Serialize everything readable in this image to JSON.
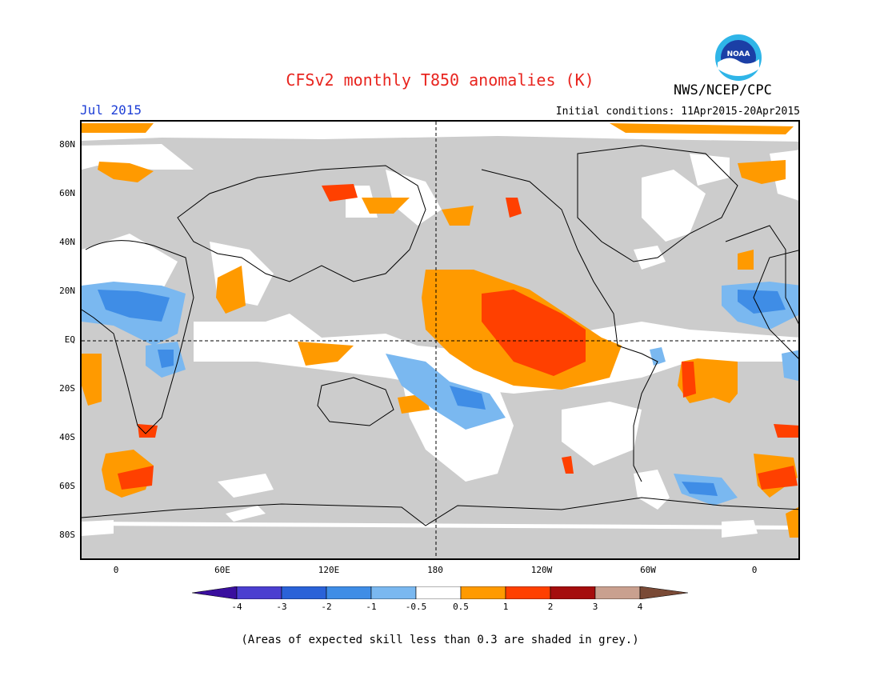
{
  "title": "CFSv2 monthly T850 anomalies (K)",
  "agency": "NWS/NCEP/CPC",
  "logo_text": "NOAA",
  "valid_month": "Jul 2015",
  "initial_conditions": "Initial conditions: 11Apr2015-20Apr2015",
  "lat_labels": [
    "80N",
    "60N",
    "40N",
    "20N",
    "EQ",
    "20S",
    "40S",
    "60S",
    "80S"
  ],
  "lon_labels": [
    "0",
    "60E",
    "120E",
    "180",
    "120W",
    "60W",
    "0"
  ],
  "colorbar": {
    "ticks": [
      "-4",
      "-3",
      "-2",
      "-1",
      "-0.5",
      "0.5",
      "1",
      "2",
      "3",
      "4"
    ],
    "colors": [
      "#3a0f9e",
      "#4b3fd0",
      "#2a62d8",
      "#3f8de6",
      "#7ab8f0",
      "#ffffff",
      "#ff9a00",
      "#ff4000",
      "#a50d0d",
      "#c9a08f",
      "#7a4a36"
    ]
  },
  "footnote": "(Areas of expected skill less than 0.3 are shaded in grey.)",
  "colors": {
    "skill_grey": "#cccccc",
    "neutral": "#ffffff",
    "warm_0p5_1": "#ff9a00",
    "warm_1_2": "#ff4000",
    "cool_m1_m0p5": "#7ab8f0",
    "cool_m2_m1": "#3f8de6"
  }
}
